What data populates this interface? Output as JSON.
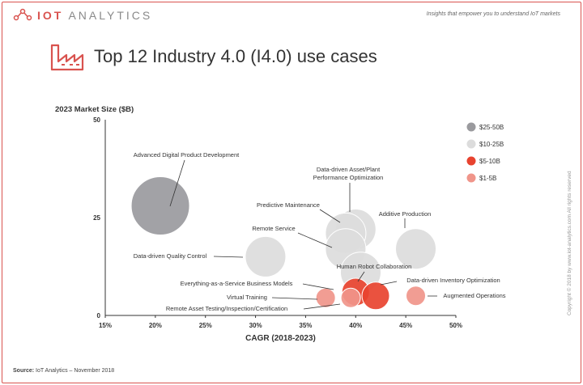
{
  "header": {
    "logo_text_accent": "IOT",
    "logo_text_rest": "ANALYTICS",
    "tagline": "Insights that empower you to understand IoT markets",
    "title": "Top 12 Industry 4.0 (I4.0) use cases"
  },
  "footer": {
    "source_label": "Source:",
    "source_text": "IoT Analytics – November 2018",
    "copyright": "Copyright © 2018 by www.iot-analytics.com All rights reserved"
  },
  "colors": {
    "accent": "#d9534f",
    "size_25_50": "#9a9a9e",
    "size_10_25": "#dcdcdc",
    "size_5_10": "#e8432f",
    "size_1_5": "#f0958a"
  },
  "chart_data": {
    "type": "scatter",
    "subtype": "bubble",
    "title": "",
    "ylabel": "2023 Market Size ($B)",
    "xlabel": "CAGR (2018-2023)",
    "xlim": [
      15,
      50
    ],
    "ylim": [
      0,
      50
    ],
    "x_ticks": [
      "15%",
      "20%",
      "25%",
      "30%",
      "35%",
      "40%",
      "45%",
      "50%"
    ],
    "y_ticks": [
      "0",
      "25",
      "50"
    ],
    "grid": false,
    "legend_position": "right",
    "legend": [
      {
        "label": "$25-50B",
        "color": "#9a9a9e"
      },
      {
        "label": "$10-25B",
        "color": "#dcdcdc"
      },
      {
        "label": "$5-10B",
        "color": "#e8432f"
      },
      {
        "label": "$1-5B",
        "color": "#f0958a"
      }
    ],
    "points": [
      {
        "label": "Advanced Digital Product Development",
        "x": 20.5,
        "y": 28,
        "size_class": "$25-50B",
        "color": "#9a9a9e"
      },
      {
        "label": "Data-driven Asset/Plant Performance Optimization",
        "x": 40,
        "y": 22,
        "size_class": "$10-25B",
        "color": "#dcdcdc"
      },
      {
        "label": "Predictive Maintenance",
        "x": 39,
        "y": 21,
        "size_class": "$10-25B",
        "color": "#dcdcdc"
      },
      {
        "label": "Additive Production",
        "x": 46,
        "y": 17,
        "size_class": "$10-25B",
        "color": "#dcdcdc"
      },
      {
        "label": "Remote Service",
        "x": 39,
        "y": 17,
        "size_class": "$10-25B",
        "color": "#dcdcdc"
      },
      {
        "label": "Data-driven Quality Control",
        "x": 31,
        "y": 15,
        "size_class": "$10-25B",
        "color": "#dcdcdc"
      },
      {
        "label": "Human Robot Collaboration",
        "x": 40.5,
        "y": 11,
        "size_class": "$10-25B",
        "color": "#dcdcdc"
      },
      {
        "label": "Everything-as-a-Service Business Models",
        "x": 40,
        "y": 6,
        "size_class": "$5-10B",
        "color": "#e8432f"
      },
      {
        "label": "Data-driven Inventory Optimization",
        "x": 42,
        "y": 5,
        "size_class": "$5-10B",
        "color": "#e8432f"
      },
      {
        "label": "Virtual Training",
        "x": 37,
        "y": 4.5,
        "size_class": "$1-5B",
        "color": "#f0958a"
      },
      {
        "label": "Augmented Operations",
        "x": 46,
        "y": 5,
        "size_class": "$1-5B",
        "color": "#f0958a"
      },
      {
        "label": "Remote Asset Testing/Inspection/Certification",
        "x": 39.5,
        "y": 4.5,
        "size_class": "$1-5B",
        "color": "#f0958a"
      }
    ]
  }
}
